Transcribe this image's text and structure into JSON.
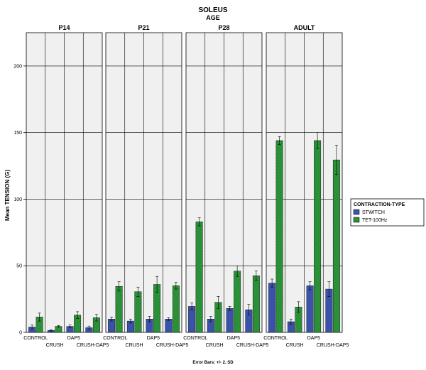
{
  "chart_data": {
    "type": "bar",
    "title": "SOLEUS",
    "facet_title": "AGE",
    "ylabel": "Mean TENSION (G)",
    "ylim": [
      0,
      225
    ],
    "yticks": [
      0,
      50,
      100,
      150,
      200
    ],
    "grid": true,
    "legend_position": "right",
    "legend_title": "CONTRACTION-TYPE",
    "footnote": "Error Bars: +/- 2. SD",
    "categories": [
      "CONTROL",
      "CRUSH",
      "DAP5",
      "CRUSH-DAP5"
    ],
    "series_names": [
      "STWITCH",
      "TET-100Hz"
    ],
    "colors": {
      "STWITCH": "#3a53a8",
      "TET-100Hz": "#2e9a3c"
    },
    "panels": [
      {
        "label": "P14",
        "stwitch": [
          4,
          1.5,
          4.5,
          3.5
        ],
        "stwitch_err": [
          1.5,
          0.5,
          1,
          1.2
        ],
        "tet": [
          11.5,
          4.5,
          13,
          11
        ],
        "tet_err": [
          3,
          0.7,
          2.5,
          2.5
        ]
      },
      {
        "label": "P21",
        "stwitch": [
          10,
          8.5,
          10,
          10
        ],
        "stwitch_err": [
          1.5,
          1.5,
          2,
          1
        ],
        "tet": [
          34.5,
          30.5,
          36,
          35
        ],
        "tet_err": [
          3.5,
          3.5,
          6,
          2.5
        ]
      },
      {
        "label": "P28",
        "stwitch": [
          19.5,
          10,
          18,
          17
        ],
        "stwitch_err": [
          2.5,
          2,
          1.5,
          4
        ],
        "tet": [
          83,
          22.5,
          46,
          42.5
        ],
        "tet_err": [
          3,
          4.5,
          4,
          3.5
        ]
      },
      {
        "label": "ADULT",
        "stwitch": [
          37,
          8,
          35,
          32.5
        ],
        "stwitch_err": [
          3,
          2,
          3,
          5.5
        ],
        "tet": [
          144,
          19,
          144,
          129.5
        ],
        "tet_err": [
          3,
          4,
          6,
          11
        ]
      }
    ]
  }
}
